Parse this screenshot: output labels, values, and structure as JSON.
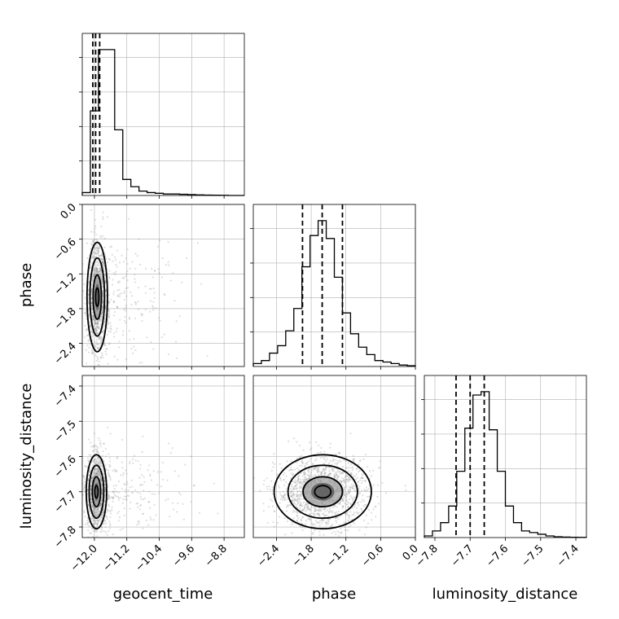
{
  "chart_data": {
    "type": "corner",
    "parameters": [
      {
        "name": "geocent_time",
        "range": [
          -12.3,
          -8.3
        ],
        "ticks": [
          -12.0,
          -11.2,
          -10.4,
          -9.6,
          -8.8
        ],
        "tick_labels": [
          "−12.0",
          "−11.2",
          "−10.4",
          "−9.6",
          "−8.8"
        ],
        "quantiles": [
          -12.04,
          -11.97,
          -11.87
        ],
        "peak": -11.92,
        "hist_counts": [
          2,
          58,
          100,
          100,
          45,
          11,
          6,
          3,
          2,
          1.5,
          1,
          1,
          0.8,
          0.6,
          0.4,
          0.3,
          0.2,
          0.1,
          0,
          0
        ]
      },
      {
        "name": "phase",
        "range": [
          -2.8,
          0.0
        ],
        "ticks": [
          -2.4,
          -1.8,
          -1.2,
          -0.6,
          0.0
        ],
        "tick_labels": [
          "−2.4",
          "−1.8",
          "−1.2",
          "−0.6",
          "0.0"
        ],
        "quantiles": [
          -1.95,
          -1.61,
          -1.26
        ],
        "peak": -1.6,
        "hist_counts": [
          2,
          4,
          9,
          14,
          24,
          39,
          67,
          88,
          98,
          86,
          60,
          36,
          22,
          13,
          8,
          4,
          3,
          2,
          1,
          0.5
        ]
      },
      {
        "name": "luminosity_distance",
        "range": [
          -7.83,
          -7.37
        ],
        "ticks": [
          -7.8,
          -7.7,
          -7.6,
          -7.5,
          -7.4
        ],
        "tick_labels": [
          "−7.8",
          "−7.7",
          "−7.6",
          "−7.5",
          "−7.4"
        ],
        "quantiles": [
          -7.74,
          -7.7,
          -7.66
        ],
        "peak": -7.7,
        "hist_counts": [
          1,
          4,
          9,
          19,
          40,
          66,
          86,
          88,
          65,
          40,
          19,
          9,
          4,
          3,
          2,
          1,
          0.5,
          0.3,
          0.2,
          0.1
        ]
      }
    ],
    "pairs": [
      {
        "x": "geocent_time",
        "y": "phase",
        "center": [
          -11.93,
          -1.6
        ],
        "spread": [
          0.12,
          0.45
        ]
      },
      {
        "x": "geocent_time",
        "y": "luminosity_distance",
        "center": [
          -11.95,
          -7.7
        ],
        "spread": [
          0.12,
          0.05
        ]
      },
      {
        "x": "phase",
        "y": "luminosity_distance",
        "center": [
          -1.6,
          -7.7
        ],
        "spread": [
          0.4,
          0.05
        ]
      }
    ],
    "grid": true,
    "xlabel_row": [
      "geocent_time",
      "phase",
      "luminosity_distance"
    ],
    "ylabel_col": [
      "",
      "phase",
      "luminosity_distance"
    ],
    "colors": {
      "line": "#000000",
      "points": "#8a8a8a",
      "grid": "#b0b0b0"
    }
  },
  "labels": {
    "x0": "geocent_time",
    "x1": "phase",
    "x2": "luminosity_distance",
    "y1": "phase",
    "y2": "luminosity_distance"
  }
}
